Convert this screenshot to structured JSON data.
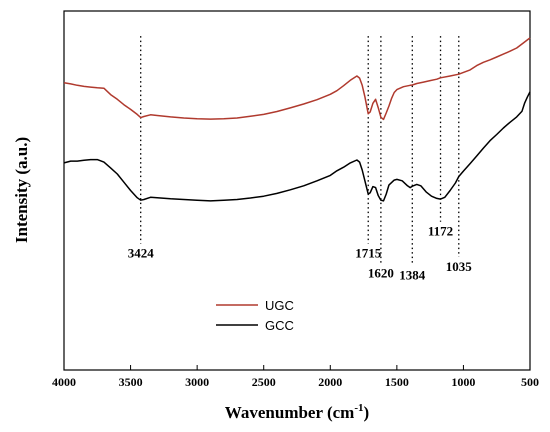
{
  "chart_data": {
    "type": "line",
    "title": "",
    "xlabel": "Wavenumber (cm",
    "xlabel_sup": "-1",
    "xlabel_close": ")",
    "ylabel": "Intensity (a.u.)",
    "xlim": [
      4000,
      500
    ],
    "ylim": [
      0,
      100
    ],
    "x_ticks": [
      {
        "value": 4000,
        "label": "4000"
      },
      {
        "value": 3500,
        "label": "3500"
      },
      {
        "value": 3000,
        "label": "3000"
      },
      {
        "value": 2500,
        "label": "2500"
      },
      {
        "value": 2000,
        "label": "2000"
      },
      {
        "value": 1500,
        "label": "1500"
      },
      {
        "value": 1000,
        "label": "1000"
      },
      {
        "value": 500,
        "label": "500"
      }
    ],
    "y_ticks_shown": false,
    "grid": false,
    "legend": "bottom-center",
    "series": [
      {
        "name": "UGC",
        "color": "#b03a2e",
        "points": [
          [
            4000,
            80.0
          ],
          [
            3950,
            79.7
          ],
          [
            3900,
            79.3
          ],
          [
            3850,
            79.0
          ],
          [
            3800,
            78.8
          ],
          [
            3750,
            78.6
          ],
          [
            3700,
            78.5
          ],
          [
            3650,
            76.7
          ],
          [
            3600,
            75.4
          ],
          [
            3550,
            73.9
          ],
          [
            3500,
            72.6
          ],
          [
            3450,
            71.2
          ],
          [
            3424,
            70.3
          ],
          [
            3400,
            70.6
          ],
          [
            3350,
            71.1
          ],
          [
            3300,
            70.9
          ],
          [
            3200,
            70.5
          ],
          [
            3100,
            70.2
          ],
          [
            3000,
            70.0
          ],
          [
            2900,
            69.9
          ],
          [
            2800,
            70.0
          ],
          [
            2700,
            70.2
          ],
          [
            2600,
            70.7
          ],
          [
            2500,
            71.2
          ],
          [
            2400,
            72.0
          ],
          [
            2300,
            73.0
          ],
          [
            2200,
            74.1
          ],
          [
            2100,
            75.3
          ],
          [
            2000,
            76.8
          ],
          [
            1950,
            77.8
          ],
          [
            1900,
            79.2
          ],
          [
            1850,
            80.7
          ],
          [
            1800,
            81.9
          ],
          [
            1780,
            81.3
          ],
          [
            1760,
            79.3
          ],
          [
            1740,
            76.1
          ],
          [
            1715,
            71.4
          ],
          [
            1700,
            71.9
          ],
          [
            1680,
            74.3
          ],
          [
            1660,
            75.4
          ],
          [
            1640,
            73.1
          ],
          [
            1620,
            70.4
          ],
          [
            1600,
            69.8
          ],
          [
            1580,
            71.6
          ],
          [
            1560,
            73.5
          ],
          [
            1540,
            75.6
          ],
          [
            1520,
            77.3
          ],
          [
            1500,
            78.1
          ],
          [
            1450,
            78.9
          ],
          [
            1400,
            79.3
          ],
          [
            1384,
            79.4
          ],
          [
            1350,
            79.8
          ],
          [
            1300,
            80.2
          ],
          [
            1250,
            80.6
          ],
          [
            1200,
            81.0
          ],
          [
            1172,
            81.4
          ],
          [
            1100,
            81.9
          ],
          [
            1035,
            82.4
          ],
          [
            1000,
            82.9
          ],
          [
            950,
            83.6
          ],
          [
            900,
            84.8
          ],
          [
            850,
            85.7
          ],
          [
            800,
            86.4
          ],
          [
            750,
            87.2
          ],
          [
            700,
            88.0
          ],
          [
            650,
            88.8
          ],
          [
            600,
            89.7
          ],
          [
            550,
            91.1
          ],
          [
            500,
            92.5
          ]
        ]
      },
      {
        "name": "GCC",
        "color": "#000000",
        "points": [
          [
            4000,
            57.7
          ],
          [
            3950,
            58.2
          ],
          [
            3900,
            58.2
          ],
          [
            3850,
            58.4
          ],
          [
            3800,
            58.6
          ],
          [
            3750,
            58.6
          ],
          [
            3700,
            57.9
          ],
          [
            3650,
            56.3
          ],
          [
            3600,
            54.6
          ],
          [
            3550,
            52.3
          ],
          [
            3500,
            50.0
          ],
          [
            3450,
            48.0
          ],
          [
            3424,
            47.3
          ],
          [
            3400,
            47.5
          ],
          [
            3350,
            48.1
          ],
          [
            3300,
            48.0
          ],
          [
            3200,
            47.7
          ],
          [
            3100,
            47.5
          ],
          [
            3000,
            47.3
          ],
          [
            2900,
            47.1
          ],
          [
            2800,
            47.3
          ],
          [
            2700,
            47.5
          ],
          [
            2600,
            47.9
          ],
          [
            2500,
            48.4
          ],
          [
            2400,
            49.2
          ],
          [
            2300,
            50.2
          ],
          [
            2200,
            51.3
          ],
          [
            2100,
            52.7
          ],
          [
            2000,
            54.2
          ],
          [
            1950,
            55.5
          ],
          [
            1900,
            56.5
          ],
          [
            1850,
            57.7
          ],
          [
            1800,
            58.5
          ],
          [
            1780,
            57.9
          ],
          [
            1760,
            55.7
          ],
          [
            1740,
            52.7
          ],
          [
            1715,
            49.0
          ],
          [
            1700,
            49.4
          ],
          [
            1680,
            51.1
          ],
          [
            1660,
            50.8
          ],
          [
            1640,
            48.6
          ],
          [
            1620,
            47.3
          ],
          [
            1600,
            47.1
          ],
          [
            1580,
            49.0
          ],
          [
            1560,
            51.5
          ],
          [
            1520,
            52.9
          ],
          [
            1500,
            53.1
          ],
          [
            1460,
            52.7
          ],
          [
            1420,
            51.3
          ],
          [
            1400,
            50.8
          ],
          [
            1384,
            51.2
          ],
          [
            1350,
            51.7
          ],
          [
            1320,
            51.3
          ],
          [
            1280,
            49.6
          ],
          [
            1240,
            48.4
          ],
          [
            1200,
            47.8
          ],
          [
            1172,
            47.6
          ],
          [
            1140,
            48.1
          ],
          [
            1100,
            50.0
          ],
          [
            1060,
            52.1
          ],
          [
            1035,
            53.9
          ],
          [
            1000,
            55.4
          ],
          [
            950,
            57.5
          ],
          [
            900,
            59.6
          ],
          [
            850,
            61.8
          ],
          [
            800,
            63.9
          ],
          [
            750,
            65.6
          ],
          [
            700,
            67.4
          ],
          [
            650,
            69.0
          ],
          [
            600,
            70.5
          ],
          [
            560,
            72.1
          ],
          [
            540,
            74.4
          ],
          [
            520,
            76.0
          ],
          [
            500,
            77.5
          ]
        ]
      }
    ],
    "annotations": [
      {
        "x": 3424,
        "label": "3424",
        "label_y": 31.3
      },
      {
        "x": 1715,
        "label": "1715",
        "label_y": 31.3
      },
      {
        "x": 1620,
        "label": "1620",
        "label_y": 25.8
      },
      {
        "x": 1384,
        "label": "1384",
        "label_y": 25.2
      },
      {
        "x": 1172,
        "label": "1172",
        "label_y": 37.4
      },
      {
        "x": 1035,
        "label": "1035",
        "label_y": 27.6
      }
    ]
  }
}
